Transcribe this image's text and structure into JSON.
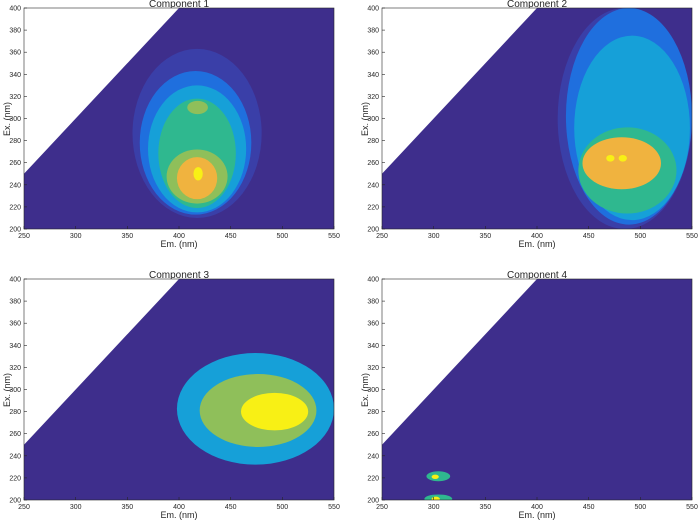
{
  "figure": {
    "background": "#ffffff",
    "colors": {
      "base": "#3e2e8c",
      "level1": "#3a3fa8",
      "level2": "#1f6fde",
      "level3": "#16a0d8",
      "level4": "#2fb88f",
      "level5": "#8fbf5a",
      "level6": "#f0b33f",
      "level7": "#f8f015",
      "blank": "#ffffff"
    }
  },
  "chart_data": [
    {
      "type": "heatmap",
      "title": "Component 1",
      "xlabel": "Em. (nm)",
      "ylabel": "Ex. (nm)",
      "xlim": [
        250,
        550
      ],
      "ylim": [
        200,
        400
      ],
      "xticks": [
        250,
        300,
        350,
        400,
        450,
        500,
        550
      ],
      "yticks": [
        200,
        220,
        240,
        260,
        280,
        300,
        320,
        340,
        360,
        380,
        400
      ],
      "blank_region": "Em < Ex (upper-left triangle)",
      "contours": [
        {
          "level": 1,
          "color": "#3a3fa8",
          "em": [
            355,
            480
          ],
          "ex": [
            210,
            363
          ]
        },
        {
          "level": 2,
          "color": "#1f6fde",
          "em": [
            362,
            470
          ],
          "ex": [
            213,
            343
          ]
        },
        {
          "level": 3,
          "color": "#16a0d8",
          "em": [
            370,
            465
          ],
          "ex": [
            215,
            330
          ]
        },
        {
          "level": 4,
          "color": "#2fb88f",
          "em": [
            380,
            455
          ],
          "ex": [
            219,
            318
          ]
        },
        {
          "level": 5,
          "color": "#8fbf5a",
          "em": [
            388,
            447
          ],
          "ex": [
            223,
            272
          ]
        },
        {
          "level": 5,
          "color": "#8fbf5a",
          "em": [
            408,
            428
          ],
          "ex": [
            304,
            316
          ]
        },
        {
          "level": 6,
          "color": "#f0b33f",
          "em": [
            398,
            437
          ],
          "ex": [
            227,
            265
          ]
        },
        {
          "level": 7,
          "color": "#f8f015",
          "em": [
            414,
            423
          ],
          "ex": [
            244,
            256
          ]
        }
      ]
    },
    {
      "type": "heatmap",
      "title": "Component 2",
      "xlabel": "Em. (nm)",
      "ylabel": "Ex. (nm)",
      "xlim": [
        250,
        550
      ],
      "ylim": [
        200,
        400
      ],
      "xticks": [
        250,
        300,
        350,
        400,
        450,
        500,
        550
      ],
      "yticks": [
        200,
        220,
        240,
        260,
        280,
        300,
        320,
        340,
        360,
        380,
        400
      ],
      "blank_region": "Em < Ex (upper-left triangle)",
      "contours": [
        {
          "level": 1,
          "color": "#3a3fa8",
          "em": [
            420,
            550
          ],
          "ex": [
            200,
            400
          ]
        },
        {
          "level": 2,
          "color": "#1f6fde",
          "em": [
            428,
            550
          ],
          "ex": [
            204,
            400
          ]
        },
        {
          "level": 3,
          "color": "#16a0d8",
          "em": [
            436,
            548
          ],
          "ex": [
            208,
            375
          ]
        },
        {
          "level": 4,
          "color": "#2fb88f",
          "em": [
            440,
            535
          ],
          "ex": [
            214,
            292
          ]
        },
        {
          "level": 6,
          "color": "#f0b33f",
          "em": [
            444,
            520
          ],
          "ex": [
            236,
            283
          ]
        },
        {
          "level": 7,
          "color": "#f8f015",
          "em": [
            467,
            475
          ],
          "ex": [
            261,
            267
          ]
        },
        {
          "level": 7,
          "color": "#f8f015",
          "em": [
            479,
            487
          ],
          "ex": [
            261,
            267
          ]
        }
      ]
    },
    {
      "type": "heatmap",
      "title": "Component 3",
      "xlabel": "Em. (nm)",
      "ylabel": "Ex. (nm)",
      "xlim": [
        250,
        550
      ],
      "ylim": [
        200,
        400
      ],
      "xticks": [
        250,
        300,
        350,
        400,
        450,
        500,
        550
      ],
      "yticks": [
        200,
        220,
        240,
        260,
        280,
        300,
        320,
        340,
        360,
        380,
        400
      ],
      "blank_region": "Em < Ex (upper-left triangle)",
      "contours": [
        {
          "level": 3,
          "color": "#16a0d8",
          "em": [
            398,
            550
          ],
          "ex": [
            232,
            333
          ]
        },
        {
          "level": 5,
          "color": "#8fbf5a",
          "em": [
            420,
            533
          ],
          "ex": [
            248,
            314
          ]
        },
        {
          "level": 7,
          "color": "#f8f015",
          "em": [
            460,
            525
          ],
          "ex": [
            263,
            297
          ]
        }
      ]
    },
    {
      "type": "heatmap",
      "title": "Component 4",
      "xlabel": "Em. (nm)",
      "ylabel": "Ex. (nm)",
      "xlim": [
        250,
        550
      ],
      "ylim": [
        200,
        400
      ],
      "xticks": [
        250,
        300,
        350,
        400,
        450,
        500,
        550
      ],
      "yticks": [
        200,
        220,
        240,
        260,
        280,
        300,
        320,
        340,
        360,
        380,
        400
      ],
      "blank_region": "Em < Ex (upper-left triangle)",
      "contours": [
        {
          "level": 4,
          "color": "#2fb88f",
          "em": [
            293,
            316
          ],
          "ex": [
            217,
            226
          ]
        },
        {
          "level": 7,
          "color": "#f8f015",
          "em": [
            298,
            305
          ],
          "ex": [
            219,
            223
          ]
        },
        {
          "level": 4,
          "color": "#2fb88f",
          "em": [
            291,
            318
          ],
          "ex": [
            197,
            205
          ]
        },
        {
          "level": 7,
          "color": "#f8f015",
          "em": [
            298,
            306
          ],
          "ex": [
            199,
            203
          ]
        }
      ]
    }
  ]
}
